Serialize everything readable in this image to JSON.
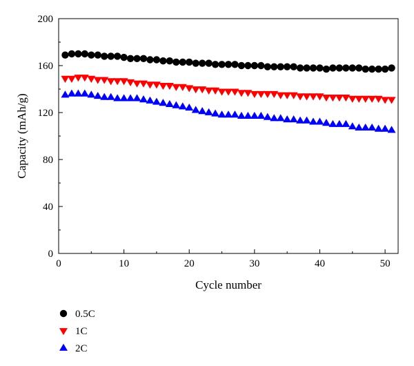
{
  "chart_data": {
    "type": "scatter",
    "xlabel": "Cycle number",
    "ylabel": "Capacity (mAh/g)",
    "xlim": [
      0,
      52
    ],
    "ylim": [
      0,
      200
    ],
    "xticks": [
      0,
      10,
      20,
      30,
      40,
      50
    ],
    "yticks": [
      0,
      40,
      80,
      120,
      160,
      200
    ],
    "grid": false,
    "legend_position": "bottom-left",
    "x": [
      1,
      2,
      3,
      4,
      5,
      6,
      7,
      8,
      9,
      10,
      11,
      12,
      13,
      14,
      15,
      16,
      17,
      18,
      19,
      20,
      21,
      22,
      23,
      24,
      25,
      26,
      27,
      28,
      29,
      30,
      31,
      32,
      33,
      34,
      35,
      36,
      37,
      38,
      39,
      40,
      41,
      42,
      43,
      44,
      45,
      46,
      47,
      48,
      49,
      50,
      51
    ],
    "series": [
      {
        "name": "0.5C",
        "marker": "circle",
        "color": "#000000",
        "values": [
          169,
          170,
          170,
          170,
          169,
          169,
          168,
          168,
          168,
          167,
          166,
          166,
          166,
          165,
          165,
          164,
          164,
          163,
          163,
          163,
          162,
          162,
          162,
          161,
          161,
          161,
          161,
          160,
          160,
          160,
          160,
          159,
          159,
          159,
          159,
          159,
          158,
          158,
          158,
          158,
          157,
          158,
          158,
          158,
          158,
          158,
          157,
          157,
          157,
          157,
          158
        ]
      },
      {
        "name": "1C",
        "marker": "triangle-down",
        "color": "#ff0000",
        "values": [
          149,
          149,
          150,
          150,
          149,
          148,
          148,
          147,
          147,
          147,
          146,
          145,
          145,
          144,
          144,
          143,
          143,
          142,
          142,
          141,
          140,
          140,
          139,
          139,
          138,
          138,
          138,
          137,
          137,
          136,
          136,
          136,
          136,
          135,
          135,
          135,
          134,
          134,
          134,
          134,
          133,
          133,
          133,
          133,
          132,
          132,
          132,
          132,
          132,
          131,
          131
        ]
      },
      {
        "name": "2C",
        "marker": "triangle-up",
        "color": "#0000ff",
        "values": [
          135,
          136,
          136,
          136,
          135,
          134,
          133,
          133,
          132,
          132,
          132,
          132,
          131,
          130,
          129,
          128,
          127,
          126,
          125,
          124,
          122,
          121,
          120,
          119,
          118,
          118,
          118,
          117,
          117,
          117,
          117,
          116,
          115,
          115,
          114,
          114,
          113,
          113,
          112,
          112,
          111,
          110,
          110,
          110,
          108,
          107,
          107,
          107,
          106,
          106,
          105
        ]
      }
    ]
  }
}
